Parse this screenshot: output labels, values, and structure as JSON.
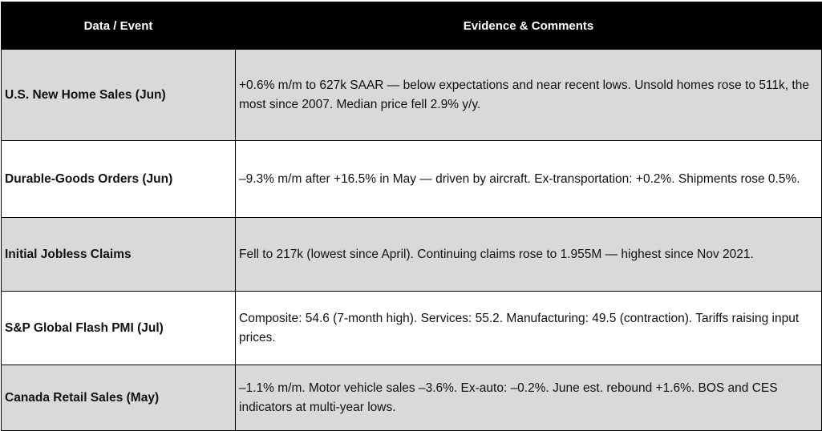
{
  "table": {
    "headers": [
      "Data / Event",
      "Evidence & Comments"
    ],
    "rows": [
      {
        "event": "U.S. New Home Sales (Jun)",
        "comment": "+0.6% m/m to 627k SAAR — below expectations and near recent lows. Unsold homes rose to 511k, the most since 2007. Median price fell 2.9% y/y."
      },
      {
        "event": "Durable-Goods Orders (Jun)",
        "comment": "–9.3% m/m after +16.5% in May — driven by aircraft. Ex-transportation: +0.2%. Shipments rose 0.5%."
      },
      {
        "event": "Initial Jobless Claims",
        "comment": "Fell to 217k (lowest since April). Continuing claims rose to 1.955M — highest since Nov 2021."
      },
      {
        "event": "S&P Global Flash PMI (Jul)",
        "comment": "Composite: 54.6 (7-month high). Services: 55.2. Manufacturing: 49.5 (contraction). Tariffs raising input prices."
      },
      {
        "event": "Canada Retail Sales (May)",
        "comment": "–1.1% m/m. Motor vehicle sales –3.6%. Ex-auto: –0.2%. June est. rebound +1.6%. BOS and CES indicators at multi-year lows."
      }
    ]
  },
  "colors": {
    "header_bg": "#000000",
    "header_text": "#ffffff",
    "row_shade": "#d9d9d9",
    "row_plain": "#ffffff",
    "border": "#000000"
  }
}
